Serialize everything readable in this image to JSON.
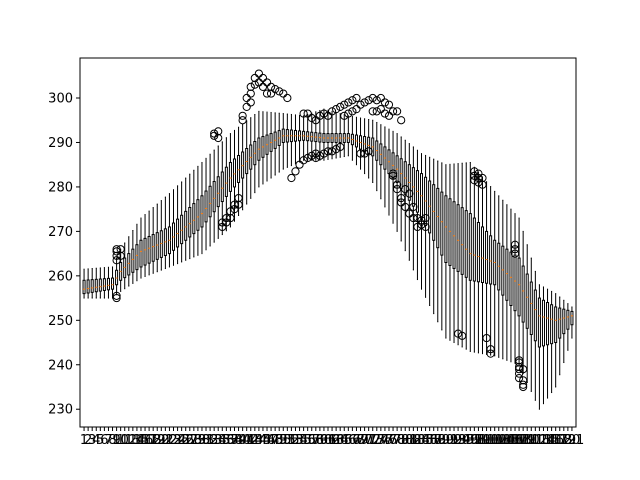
{
  "chart_data": {
    "type": "boxplot",
    "title": "",
    "xlabel": "",
    "ylabel": "",
    "n_boxes": 121,
    "x_tick_labels": "1..121 (sequential box index, labels overlap)",
    "ylim": [
      226,
      309
    ],
    "y_ticks": [
      230,
      240,
      250,
      260,
      270,
      280,
      290,
      300
    ],
    "grid": false,
    "median_color": "#ff7f0e",
    "box_color": "#000000",
    "flier_marker": "open circle",
    "profile_control_points": {
      "box_index": [
        1,
        8,
        10,
        15,
        22,
        30,
        37,
        44,
        50,
        55,
        60,
        66,
        72,
        78,
        84,
        90,
        96,
        102,
        108,
        113,
        117,
        121
      ],
      "median": [
        257,
        258,
        261,
        265.5,
        268,
        274,
        282,
        288.5,
        291.5,
        291.5,
        291,
        291,
        289,
        284,
        278,
        271,
        265,
        263,
        258,
        251,
        250,
        251
      ],
      "q1": [
        256,
        257,
        259,
        262,
        265,
        271,
        279,
        286,
        290,
        290.5,
        290,
        290,
        287,
        281,
        273,
        263,
        259,
        258,
        251,
        244,
        245,
        249
      ],
      "q3": [
        259,
        259.5,
        263,
        268,
        271,
        278,
        285.5,
        291,
        293,
        292.5,
        292,
        292,
        291,
        287,
        283,
        278,
        274,
        268,
        264,
        255,
        253,
        252
      ],
      "whisker_low": [
        255,
        255,
        256.5,
        259.5,
        262,
        265,
        271,
        280,
        284,
        286,
        286,
        287,
        281,
        270,
        257,
        246,
        243,
        242,
        240,
        230,
        235,
        246
      ],
      "whisker_high": [
        261.5,
        262,
        266,
        273,
        278.5,
        285.5,
        292,
        297,
        296.5,
        296,
        297.5,
        296,
        295,
        292,
        287.5,
        285,
        285.5,
        279,
        273,
        258,
        256,
        253
      ]
    },
    "outliers": [
      {
        "box": 9,
        "values": [
          263.5,
          264.5,
          265.5,
          266,
          255,
          255.5
        ]
      },
      {
        "box": 10,
        "values": [
          264.5,
          266
        ]
      },
      {
        "box": 33,
        "values": [
          292,
          291.5
        ]
      },
      {
        "box": 34,
        "values": [
          292.5,
          291
        ]
      },
      {
        "box": 35,
        "values": [
          272,
          271
        ]
      },
      {
        "box": 36,
        "values": [
          273,
          272
        ]
      },
      {
        "box": 37,
        "values": [
          274.5,
          273
        ]
      },
      {
        "box": 38,
        "values": [
          276,
          275
        ]
      },
      {
        "box": 39,
        "values": [
          277.5,
          276
        ]
      },
      {
        "box": 40,
        "values": [
          296,
          295
        ]
      },
      {
        "box": 41,
        "values": [
          300,
          298
        ]
      },
      {
        "box": 42,
        "values": [
          302.5,
          301,
          299
        ]
      },
      {
        "box": 43,
        "values": [
          304.5,
          303
        ]
      },
      {
        "box": 44,
        "values": [
          305.5,
          303.5
        ]
      },
      {
        "box": 45,
        "values": [
          304.5,
          302.5
        ]
      },
      {
        "box": 46,
        "values": [
          303.5,
          301
        ]
      },
      {
        "box": 47,
        "values": [
          302.5,
          301
        ]
      },
      {
        "box": 48,
        "values": [
          302
        ]
      },
      {
        "box": 49,
        "values": [
          301.5
        ]
      },
      {
        "box": 50,
        "values": [
          301
        ]
      },
      {
        "box": 51,
        "values": [
          300
        ]
      },
      {
        "box": 52,
        "values": [
          282
        ]
      },
      {
        "box": 53,
        "values": [
          283.5
        ]
      },
      {
        "box": 54,
        "values": [
          285
        ]
      },
      {
        "box": 55,
        "values": [
          296.5,
          286
        ]
      },
      {
        "box": 56,
        "values": [
          296.5,
          286.5
        ]
      },
      {
        "box": 57,
        "values": [
          295.5,
          287
        ]
      },
      {
        "box": 58,
        "values": [
          295,
          286.5,
          287.5
        ]
      },
      {
        "box": 59,
        "values": [
          296,
          287
        ]
      },
      {
        "box": 60,
        "values": [
          296.5,
          287.5
        ]
      },
      {
        "box": 61,
        "values": [
          296,
          288
        ]
      },
      {
        "box": 62,
        "values": [
          297,
          288
        ]
      },
      {
        "box": 63,
        "values": [
          297.5,
          288.5
        ]
      },
      {
        "box": 64,
        "values": [
          298,
          289
        ]
      },
      {
        "box": 65,
        "values": [
          298.5,
          296
        ]
      },
      {
        "box": 66,
        "values": [
          299,
          296.5
        ]
      },
      {
        "box": 67,
        "values": [
          299.5,
          297
        ]
      },
      {
        "box": 68,
        "values": [
          300,
          297.5
        ]
      },
      {
        "box": 69,
        "values": [
          298.5,
          287.5
        ]
      },
      {
        "box": 70,
        "values": [
          299,
          287.5
        ]
      },
      {
        "box": 71,
        "values": [
          299.5,
          288
        ]
      },
      {
        "box": 72,
        "values": [
          300,
          297
        ]
      },
      {
        "box": 73,
        "values": [
          299.5,
          297
        ]
      },
      {
        "box": 74,
        "values": [
          300,
          297.5
        ]
      },
      {
        "box": 75,
        "values": [
          299,
          296.5
        ]
      },
      {
        "box": 76,
        "values": [
          298.5,
          296
        ]
      },
      {
        "box": 77,
        "values": [
          297,
          283,
          282.5
        ]
      },
      {
        "box": 78,
        "values": [
          297,
          280.5,
          279.5
        ]
      },
      {
        "box": 79,
        "values": [
          295,
          277.5,
          276.5
        ]
      },
      {
        "box": 80,
        "values": [
          279.5,
          275.5
        ]
      },
      {
        "box": 81,
        "values": [
          278.5,
          274
        ]
      },
      {
        "box": 82,
        "values": [
          275.5,
          273
        ]
      },
      {
        "box": 83,
        "values": [
          273,
          271
        ]
      },
      {
        "box": 84,
        "values": [
          272.5,
          271.5
        ]
      },
      {
        "box": 85,
        "values": [
          273,
          271
        ]
      },
      {
        "box": 93,
        "values": [
          247
        ]
      },
      {
        "box": 94,
        "values": [
          246.5
        ]
      },
      {
        "box": 97,
        "values": [
          283.5,
          282.5,
          281.5
        ]
      },
      {
        "box": 98,
        "values": [
          283,
          282,
          281
        ]
      },
      {
        "box": 99,
        "values": [
          282,
          280.5
        ]
      },
      {
        "box": 100,
        "values": [
          246
        ]
      },
      {
        "box": 101,
        "values": [
          243.5,
          242.5
        ]
      },
      {
        "box": 107,
        "values": [
          267,
          266,
          265
        ]
      },
      {
        "box": 108,
        "values": [
          241,
          240.5,
          239.5,
          239,
          238,
          237
        ]
      },
      {
        "box": 109,
        "values": [
          239,
          236.5,
          235.5,
          235
        ]
      }
    ]
  }
}
